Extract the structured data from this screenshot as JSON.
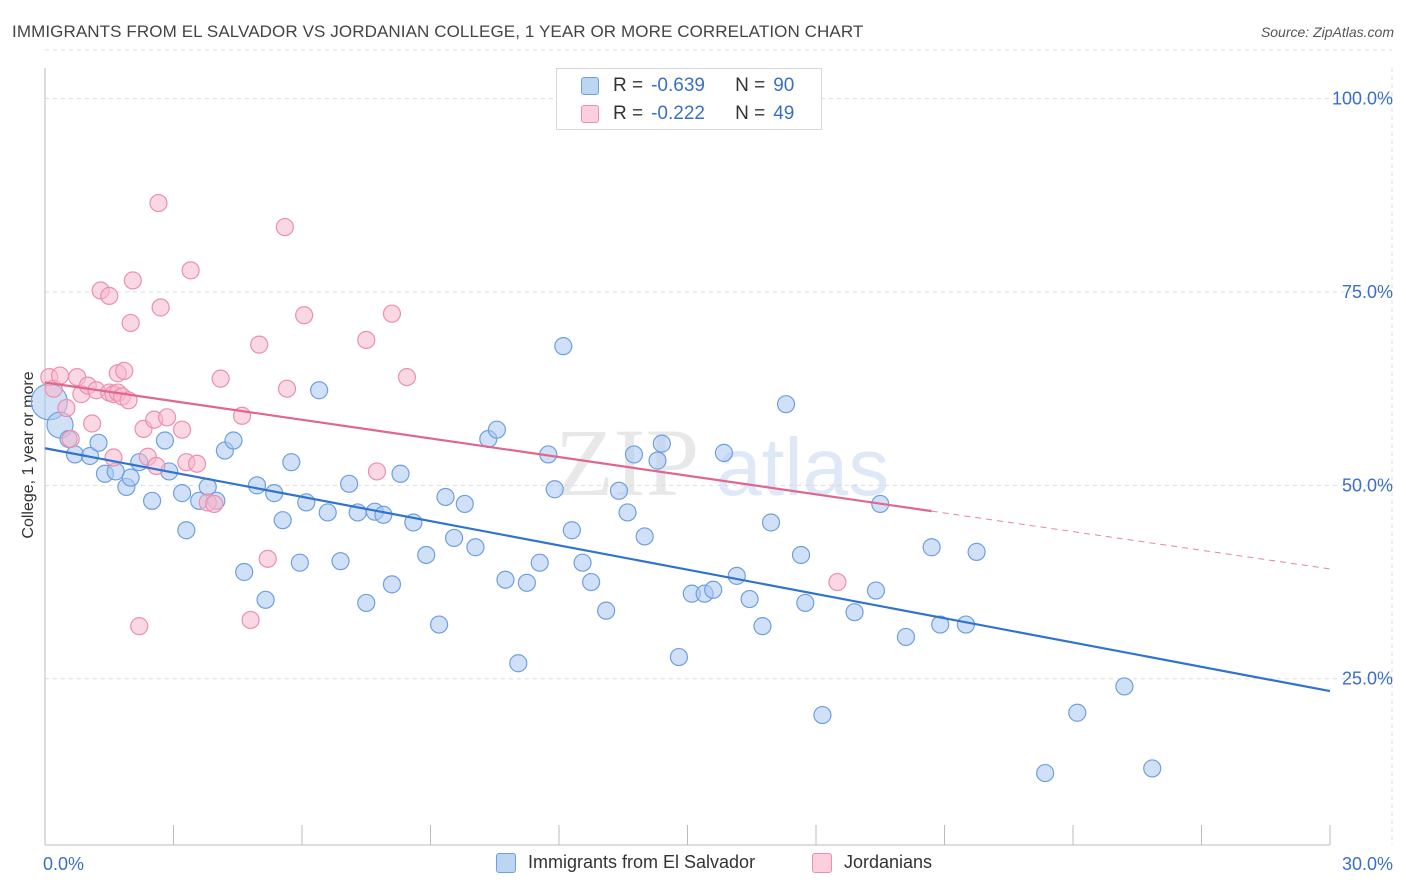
{
  "header": {
    "title": "IMMIGRANTS FROM EL SALVADOR VS JORDANIAN COLLEGE, 1 YEAR OR MORE CORRELATION CHART",
    "source": "Source: ZipAtlas.com"
  },
  "watermark": {
    "zip": "ZIP",
    "atlas": "atlas"
  },
  "colors": {
    "blue_fill": "#a9c8f0",
    "blue_stroke": "#6f9fe0",
    "blue_line": "#2f72d0",
    "pink_fill": "#f6b8cc",
    "pink_stroke": "#ec8fae",
    "pink_line": "#e0668f",
    "tick_label": "#3a6fc9",
    "grid": "#dddddd"
  },
  "stats_legend": {
    "rows": [
      {
        "r_label": "R =",
        "r_value": "-0.639",
        "n_label": "N =",
        "n_value": "90",
        "series": "blue"
      },
      {
        "r_label": "R =",
        "r_value": "-0.222",
        "n_label": "N =",
        "n_value": "49",
        "series": "pink"
      }
    ]
  },
  "chart_data": {
    "type": "scatter",
    "title": "IMMIGRANTS FROM EL SALVADOR VS JORDANIAN COLLEGE, 1 YEAR OR MORE CORRELATION CHART",
    "xlabel": "",
    "ylabel": "College, 1 year or more",
    "x_unit": "%",
    "y_unit": "%",
    "xlim": [
      0,
      30
    ],
    "ylim": [
      3.5,
      105
    ],
    "x_tick_labels": [
      "0.0%",
      "30.0%"
    ],
    "y_ticks": [
      25,
      50,
      75,
      100
    ],
    "y_tick_labels": [
      "25.0%",
      "50.0%",
      "75.0%",
      "100.0%"
    ],
    "grid": true,
    "legend_position": "bottom",
    "series": [
      {
        "name": "Immigrants from El Salvador",
        "color": "#a9c8f0",
        "trend": {
          "x0": 0,
          "y0": 54.8,
          "x1": 30,
          "y1": 23.4,
          "dashed_from": null
        },
        "points": [
          [
            0.1,
            60.8
          ],
          [
            0.35,
            57.8
          ],
          [
            0.55,
            56.0
          ],
          [
            0.7,
            54.0
          ],
          [
            1.05,
            53.8
          ],
          [
            1.25,
            55.5
          ],
          [
            1.4,
            51.5
          ],
          [
            1.65,
            51.8
          ],
          [
            1.9,
            49.8
          ],
          [
            2.0,
            51.0
          ],
          [
            2.2,
            53.0
          ],
          [
            2.5,
            48.0
          ],
          [
            2.8,
            55.8
          ],
          [
            2.9,
            51.8
          ],
          [
            3.2,
            49.0
          ],
          [
            3.3,
            44.2
          ],
          [
            3.6,
            48.0
          ],
          [
            3.8,
            49.8
          ],
          [
            4.0,
            48.0
          ],
          [
            4.2,
            54.5
          ],
          [
            4.4,
            55.8
          ],
          [
            4.65,
            38.8
          ],
          [
            4.95,
            50.0
          ],
          [
            5.15,
            35.2
          ],
          [
            5.35,
            49.0
          ],
          [
            5.55,
            45.5
          ],
          [
            5.75,
            53.0
          ],
          [
            5.95,
            40.0
          ],
          [
            6.1,
            47.8
          ],
          [
            6.4,
            62.3
          ],
          [
            6.6,
            46.5
          ],
          [
            6.9,
            40.2
          ],
          [
            7.1,
            50.2
          ],
          [
            7.3,
            46.5
          ],
          [
            7.5,
            34.8
          ],
          [
            7.7,
            46.6
          ],
          [
            7.9,
            46.2
          ],
          [
            8.1,
            37.2
          ],
          [
            8.3,
            51.5
          ],
          [
            8.6,
            45.2
          ],
          [
            8.9,
            41.0
          ],
          [
            9.2,
            32.0
          ],
          [
            9.35,
            48.5
          ],
          [
            9.55,
            43.2
          ],
          [
            9.8,
            47.6
          ],
          [
            10.05,
            42.0
          ],
          [
            10.35,
            56.0
          ],
          [
            10.55,
            57.2
          ],
          [
            10.75,
            37.8
          ],
          [
            11.05,
            27.0
          ],
          [
            11.25,
            37.4
          ],
          [
            11.55,
            40.0
          ],
          [
            11.75,
            54.0
          ],
          [
            11.9,
            49.5
          ],
          [
            12.1,
            68.0
          ],
          [
            12.3,
            44.2
          ],
          [
            12.55,
            40.0
          ],
          [
            12.75,
            37.5
          ],
          [
            13.1,
            33.8
          ],
          [
            13.4,
            49.3
          ],
          [
            13.6,
            46.5
          ],
          [
            13.75,
            54.0
          ],
          [
            14.0,
            43.4
          ],
          [
            14.3,
            53.2
          ],
          [
            14.4,
            55.4
          ],
          [
            14.8,
            27.8
          ],
          [
            15.1,
            36.0
          ],
          [
            15.4,
            36.0
          ],
          [
            15.6,
            36.5
          ],
          [
            15.85,
            54.2
          ],
          [
            16.15,
            38.3
          ],
          [
            16.45,
            35.3
          ],
          [
            16.75,
            31.8
          ],
          [
            16.95,
            45.2
          ],
          [
            17.3,
            60.5
          ],
          [
            17.65,
            41.0
          ],
          [
            17.75,
            34.8
          ],
          [
            18.15,
            20.3
          ],
          [
            18.9,
            33.6
          ],
          [
            19.4,
            36.4
          ],
          [
            19.5,
            47.6
          ],
          [
            20.1,
            30.4
          ],
          [
            20.7,
            42.0
          ],
          [
            20.9,
            32.0
          ],
          [
            21.5,
            32.0
          ],
          [
            21.75,
            41.4
          ],
          [
            23.35,
            12.8
          ],
          [
            24.1,
            20.6
          ],
          [
            25.2,
            24.0
          ],
          [
            25.85,
            13.4
          ]
        ]
      },
      {
        "name": "Jordanians",
        "color": "#f6b8cc",
        "trend": {
          "x0": 0,
          "y0": 63.3,
          "x1": 30,
          "y1": 39.2,
          "dashed_from": 20.7
        },
        "points": [
          [
            0.1,
            64.0
          ],
          [
            0.2,
            62.5
          ],
          [
            0.35,
            64.2
          ],
          [
            0.5,
            60.0
          ],
          [
            0.6,
            56.0
          ],
          [
            0.75,
            64.0
          ],
          [
            0.85,
            61.8
          ],
          [
            1.0,
            62.9
          ],
          [
            1.1,
            58.0
          ],
          [
            1.2,
            62.3
          ],
          [
            1.3,
            75.2
          ],
          [
            1.5,
            62.0
          ],
          [
            1.6,
            61.8
          ],
          [
            1.7,
            62.0
          ],
          [
            1.5,
            74.5
          ],
          [
            1.6,
            53.6
          ],
          [
            1.7,
            64.5
          ],
          [
            1.8,
            61.5
          ],
          [
            1.85,
            64.8
          ],
          [
            1.95,
            61.0
          ],
          [
            2.0,
            71.0
          ],
          [
            2.05,
            76.5
          ],
          [
            2.2,
            31.8
          ],
          [
            2.3,
            57.3
          ],
          [
            2.4,
            53.7
          ],
          [
            2.55,
            58.5
          ],
          [
            2.6,
            52.5
          ],
          [
            2.65,
            86.5
          ],
          [
            2.7,
            73.0
          ],
          [
            2.85,
            58.8
          ],
          [
            3.2,
            57.2
          ],
          [
            3.3,
            53.0
          ],
          [
            3.4,
            77.8
          ],
          [
            3.55,
            52.8
          ],
          [
            3.8,
            47.8
          ],
          [
            3.95,
            47.6
          ],
          [
            4.1,
            63.8
          ],
          [
            4.6,
            59.0
          ],
          [
            4.8,
            32.6
          ],
          [
            5.0,
            68.2
          ],
          [
            5.2,
            40.5
          ],
          [
            5.6,
            83.4
          ],
          [
            5.65,
            62.5
          ],
          [
            6.05,
            72.0
          ],
          [
            7.5,
            68.8
          ],
          [
            7.75,
            51.8
          ],
          [
            8.1,
            72.2
          ],
          [
            8.45,
            64.0
          ],
          [
            18.5,
            37.5
          ]
        ]
      }
    ]
  },
  "bottom_legend": {
    "items": [
      {
        "label": "Immigrants from El Salvador",
        "series": "blue"
      },
      {
        "label": "Jordanians",
        "series": "pink"
      }
    ]
  }
}
